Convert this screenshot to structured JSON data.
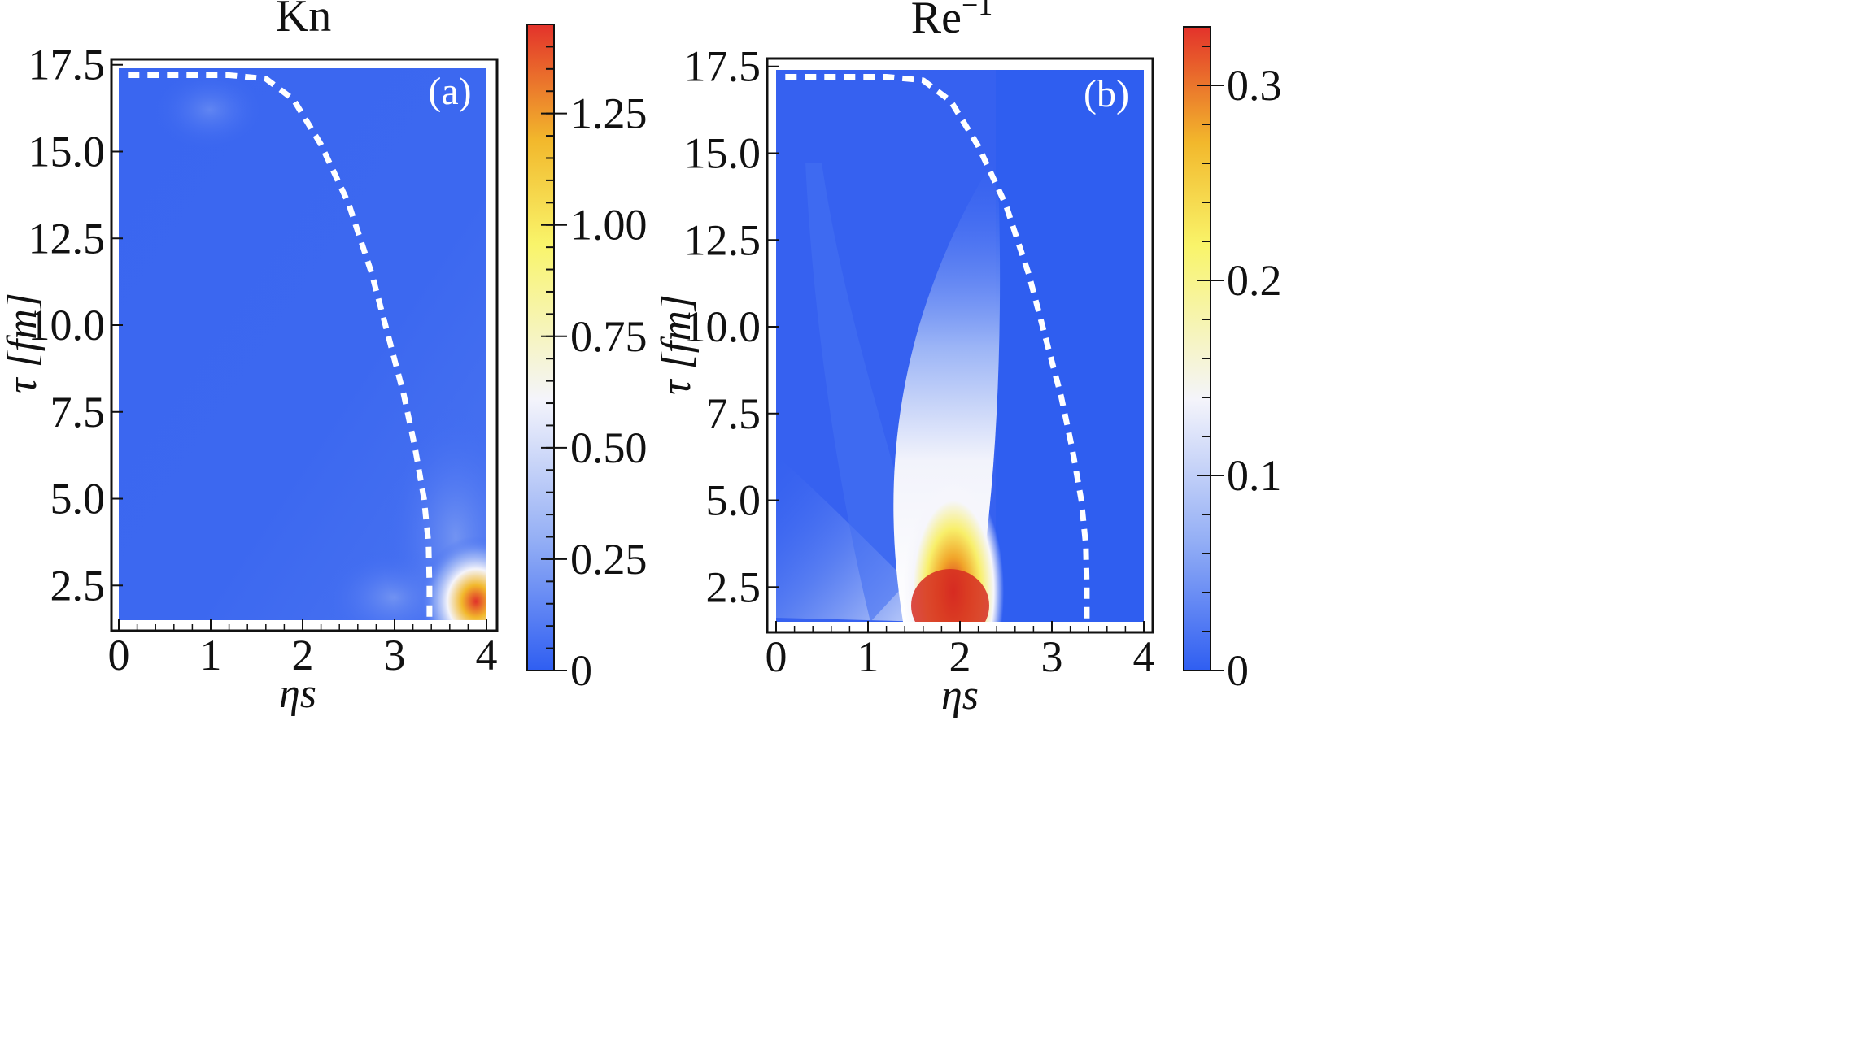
{
  "chart_data": [
    {
      "type": "heatmap",
      "id": "kn",
      "title": "Kn",
      "panel_tag": "(a)",
      "xlabel": "ηs",
      "ylabel": "τ [fm]",
      "xlim": [
        0,
        4
      ],
      "ylim": [
        1.5,
        17.4
      ],
      "x_ticks": [
        "0",
        "1",
        "2",
        "3",
        "4"
      ],
      "x_tick_values": [
        0,
        1,
        2,
        3,
        4
      ],
      "y_ticks": [
        "2.5",
        "5.0",
        "7.5",
        "10.0",
        "12.5",
        "15.0",
        "17.5"
      ],
      "y_tick_values": [
        2.5,
        5.0,
        7.5,
        10.0,
        12.5,
        15.0,
        17.5
      ],
      "colorbar": {
        "min": 0,
        "max": 1.45,
        "ticks": [
          "0",
          "0.25",
          "0.50",
          "0.75",
          "1.00",
          "1.25"
        ],
        "tick_values": [
          0,
          0.25,
          0.5,
          0.75,
          1.0,
          1.25
        ],
        "colormap": [
          "#2f5ef2",
          "#93aef5",
          "#f4f4fb",
          "#f9f46a",
          "#f2b82c",
          "#e3322b"
        ]
      },
      "contour_dashed": {
        "color": "#ffffff",
        "points": [
          [
            0.1,
            17.2
          ],
          [
            1.2,
            17.2
          ],
          [
            1.6,
            17.1
          ],
          [
            1.9,
            16.5
          ],
          [
            2.2,
            15.2
          ],
          [
            2.5,
            13.5
          ],
          [
            2.75,
            11.5
          ],
          [
            2.95,
            9.5
          ],
          [
            3.1,
            8.0
          ],
          [
            3.22,
            6.5
          ],
          [
            3.32,
            5.0
          ],
          [
            3.37,
            3.7
          ],
          [
            3.38,
            2.5
          ],
          [
            3.38,
            1.6
          ]
        ]
      },
      "hotspots": [
        {
          "x": 3.95,
          "y": 2.0,
          "value": 1.4
        },
        {
          "x": 3.0,
          "y": 2.3,
          "value": 0.15
        },
        {
          "x": 1.0,
          "y": 16.0,
          "value": 0.1
        }
      ]
    },
    {
      "type": "heatmap",
      "id": "re_inv",
      "title": "Re",
      "title_superscript": "−1",
      "panel_tag": "(b)",
      "xlabel": "ηs",
      "ylabel": "τ [fm]",
      "xlim": [
        0,
        4
      ],
      "ylim": [
        1.5,
        17.4
      ],
      "x_ticks": [
        "0",
        "1",
        "2",
        "3",
        "4"
      ],
      "x_tick_values": [
        0,
        1,
        2,
        3,
        4
      ],
      "y_ticks": [
        "2.5",
        "5.0",
        "7.5",
        "10.0",
        "12.5",
        "15.0",
        "17.5"
      ],
      "y_tick_values": [
        2.5,
        5.0,
        7.5,
        10.0,
        12.5,
        15.0,
        17.5
      ],
      "colorbar": {
        "min": 0,
        "max": 0.33,
        "ticks": [
          "0",
          "0.1",
          "0.2",
          "0.3"
        ],
        "tick_values": [
          0,
          0.1,
          0.2,
          0.3
        ],
        "colormap": [
          "#2f5ef2",
          "#93aef5",
          "#f4f4fb",
          "#f9f46a",
          "#f2b82c",
          "#e3322b"
        ]
      },
      "contour_dashed": {
        "color": "#ffffff",
        "points": [
          [
            0.1,
            17.2
          ],
          [
            1.2,
            17.2
          ],
          [
            1.6,
            17.1
          ],
          [
            1.9,
            16.5
          ],
          [
            2.2,
            15.2
          ],
          [
            2.5,
            13.5
          ],
          [
            2.75,
            11.5
          ],
          [
            2.95,
            9.5
          ],
          [
            3.1,
            8.0
          ],
          [
            3.22,
            6.5
          ],
          [
            3.32,
            5.0
          ],
          [
            3.37,
            3.7
          ],
          [
            3.38,
            2.5
          ],
          [
            3.38,
            1.6
          ]
        ]
      },
      "hotspots": [
        {
          "x": 1.95,
          "y": 1.9,
          "value": 0.32
        },
        {
          "x": 2.1,
          "y": 3.0,
          "value": 0.22
        },
        {
          "x": 2.2,
          "y": 5.0,
          "value": 0.1
        }
      ]
    }
  ]
}
